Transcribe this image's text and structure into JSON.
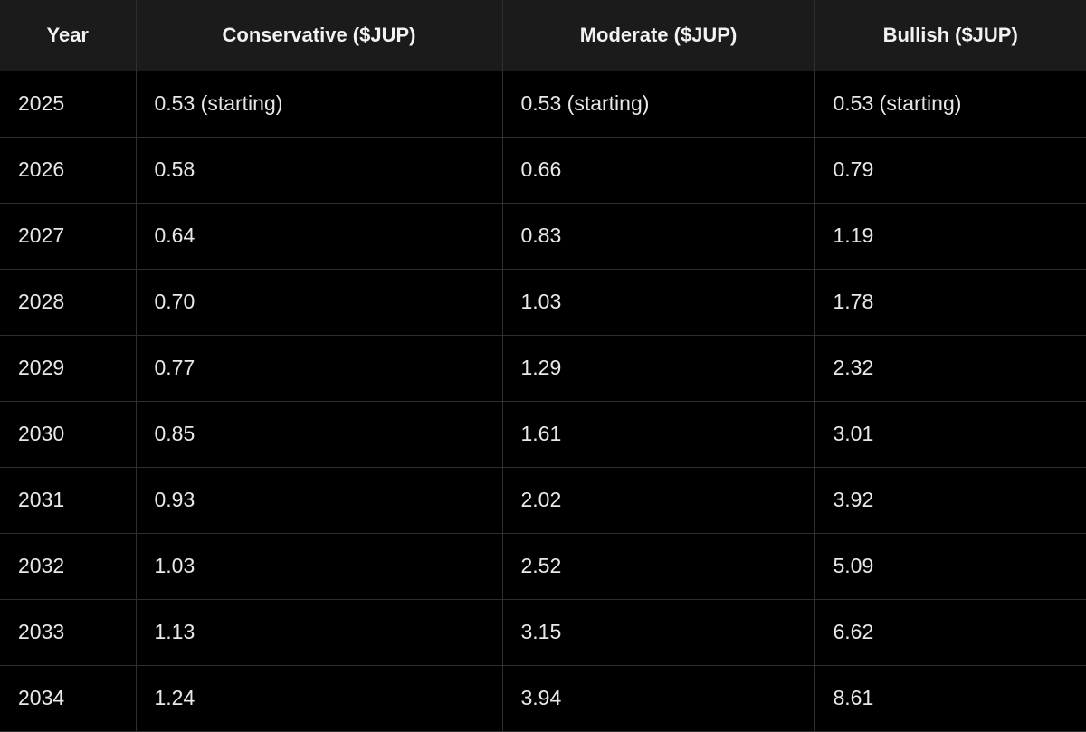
{
  "table": {
    "headers": [
      "Year",
      "Conservative ($JUP)",
      "Moderate ($JUP)",
      "Bullish ($JUP)"
    ],
    "rows": [
      [
        "2025",
        "0.53 (starting)",
        "0.53 (starting)",
        "0.53 (starting)"
      ],
      [
        "2026",
        "0.58",
        "0.66",
        "0.79"
      ],
      [
        "2027",
        "0.64",
        "0.83",
        "1.19"
      ],
      [
        "2028",
        "0.70",
        "1.03",
        "1.78"
      ],
      [
        "2029",
        "0.77",
        "1.29",
        "2.32"
      ],
      [
        "2030",
        "0.85",
        "1.61",
        "3.01"
      ],
      [
        "2031",
        "0.93",
        "2.02",
        "3.92"
      ],
      [
        "2032",
        "1.03",
        "2.52",
        "5.09"
      ],
      [
        "2033",
        "1.13",
        "3.15",
        "6.62"
      ],
      [
        "2034",
        "1.24",
        "3.94",
        "8.61"
      ]
    ]
  },
  "colors": {
    "background": "#000000",
    "header_background": "#1b1b1b",
    "grid_line": "#2f2f2f",
    "text": "#e8e8e8"
  }
}
